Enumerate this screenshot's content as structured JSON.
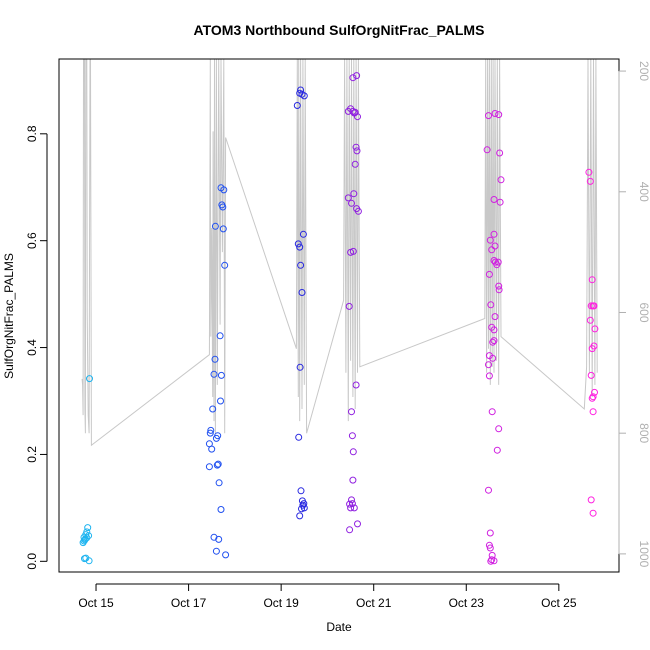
{
  "chart_data": {
    "type": "scatter",
    "title": "ATOM3 Northbound SulfOrgNitFrac_PALMS",
    "xlabel": "Date",
    "ylabel": "SulfOrgNitFrac_PALMS",
    "x_unit": "day of October",
    "xlim": [
      14.2,
      26.3
    ],
    "ylim": [
      -0.02,
      0.94
    ],
    "x_ticks": [
      15,
      17,
      19,
      21,
      23,
      25
    ],
    "x_tick_labels": [
      "Oct 15",
      "Oct 17",
      "Oct 19",
      "Oct 21",
      "Oct 23",
      "Oct 25"
    ],
    "y_ticks": [
      0.0,
      0.2,
      0.4,
      0.6,
      0.8
    ],
    "y_tick_labels": [
      "0.0",
      "0.2",
      "0.4",
      "0.6",
      "0.8"
    ],
    "right_axis": {
      "reversed": true,
      "range": [
        1030,
        180
      ],
      "ticks": [
        200,
        400,
        600,
        800,
        1000
      ],
      "tick_labels": [
        "200",
        "400",
        "600",
        "800",
        "1000"
      ],
      "line_color": "#c8c8c8"
    },
    "grid": false,
    "point_colors": [
      "#1eb4f0",
      "#2050f0",
      "#2828e0",
      "#9020e0",
      "#d020e0",
      "#ff20e0"
    ],
    "points": [
      {
        "x": 14.72,
        "y": 0.035,
        "c": 0
      },
      {
        "x": 14.74,
        "y": 0.045,
        "c": 0
      },
      {
        "x": 14.76,
        "y": 0.04,
        "c": 0
      },
      {
        "x": 14.78,
        "y": 0.05,
        "c": 0
      },
      {
        "x": 14.8,
        "y": 0.055,
        "c": 0
      },
      {
        "x": 14.82,
        "y": 0.063,
        "c": 0
      },
      {
        "x": 14.84,
        "y": 0.048,
        "c": 0
      },
      {
        "x": 14.75,
        "y": 0.005,
        "c": 0
      },
      {
        "x": 14.78,
        "y": 0.006,
        "c": 0
      },
      {
        "x": 14.85,
        "y": 0.001,
        "c": 0
      },
      {
        "x": 14.86,
        "y": 0.342,
        "c": 0
      },
      {
        "x": 14.74,
        "y": 0.038,
        "c": 0
      },
      {
        "x": 14.77,
        "y": 0.042,
        "c": 0
      },
      {
        "x": 14.8,
        "y": 0.044,
        "c": 0
      },
      {
        "x": 17.45,
        "y": 0.22,
        "c": 1
      },
      {
        "x": 17.47,
        "y": 0.24,
        "c": 1
      },
      {
        "x": 17.48,
        "y": 0.245,
        "c": 1
      },
      {
        "x": 17.5,
        "y": 0.21,
        "c": 1
      },
      {
        "x": 17.52,
        "y": 0.285,
        "c": 1
      },
      {
        "x": 17.55,
        "y": 0.35,
        "c": 1
      },
      {
        "x": 17.57,
        "y": 0.378,
        "c": 1
      },
      {
        "x": 17.6,
        "y": 0.23,
        "c": 1
      },
      {
        "x": 17.62,
        "y": 0.18,
        "c": 1
      },
      {
        "x": 17.63,
        "y": 0.235,
        "c": 1
      },
      {
        "x": 17.64,
        "y": 0.182,
        "c": 1
      },
      {
        "x": 17.58,
        "y": 0.627,
        "c": 1
      },
      {
        "x": 17.7,
        "y": 0.699,
        "c": 1
      },
      {
        "x": 17.72,
        "y": 0.667,
        "c": 1
      },
      {
        "x": 17.74,
        "y": 0.663,
        "c": 1
      },
      {
        "x": 17.75,
        "y": 0.622,
        "c": 1
      },
      {
        "x": 17.76,
        "y": 0.695,
        "c": 1
      },
      {
        "x": 17.78,
        "y": 0.554,
        "c": 1
      },
      {
        "x": 17.68,
        "y": 0.422,
        "c": 1
      },
      {
        "x": 17.71,
        "y": 0.348,
        "c": 1
      },
      {
        "x": 17.69,
        "y": 0.3,
        "c": 1
      },
      {
        "x": 17.66,
        "y": 0.147,
        "c": 1
      },
      {
        "x": 17.7,
        "y": 0.097,
        "c": 1
      },
      {
        "x": 17.55,
        "y": 0.045,
        "c": 1
      },
      {
        "x": 17.65,
        "y": 0.041,
        "c": 1
      },
      {
        "x": 17.6,
        "y": 0.019,
        "c": 1
      },
      {
        "x": 17.8,
        "y": 0.012,
        "c": 1
      },
      {
        "x": 17.45,
        "y": 0.177,
        "c": 1
      },
      {
        "x": 19.35,
        "y": 0.853,
        "c": 2
      },
      {
        "x": 19.4,
        "y": 0.876,
        "c": 2
      },
      {
        "x": 19.42,
        "y": 0.882,
        "c": 2
      },
      {
        "x": 19.45,
        "y": 0.874,
        "c": 2
      },
      {
        "x": 19.5,
        "y": 0.871,
        "c": 2
      },
      {
        "x": 19.37,
        "y": 0.594,
        "c": 2
      },
      {
        "x": 19.4,
        "y": 0.588,
        "c": 2
      },
      {
        "x": 19.48,
        "y": 0.612,
        "c": 2
      },
      {
        "x": 19.42,
        "y": 0.554,
        "c": 2
      },
      {
        "x": 19.45,
        "y": 0.503,
        "c": 2
      },
      {
        "x": 19.41,
        "y": 0.363,
        "c": 2
      },
      {
        "x": 19.38,
        "y": 0.232,
        "c": 2
      },
      {
        "x": 19.43,
        "y": 0.132,
        "c": 2
      },
      {
        "x": 19.46,
        "y": 0.113,
        "c": 2
      },
      {
        "x": 19.47,
        "y": 0.105,
        "c": 2
      },
      {
        "x": 19.5,
        "y": 0.1,
        "c": 2
      },
      {
        "x": 19.44,
        "y": 0.098,
        "c": 2
      },
      {
        "x": 19.49,
        "y": 0.108,
        "c": 2
      },
      {
        "x": 19.4,
        "y": 0.085,
        "c": 2
      },
      {
        "x": 20.45,
        "y": 0.842,
        "c": 3
      },
      {
        "x": 20.5,
        "y": 0.847,
        "c": 3
      },
      {
        "x": 20.55,
        "y": 0.842,
        "c": 3
      },
      {
        "x": 20.58,
        "y": 0.839,
        "c": 3
      },
      {
        "x": 20.6,
        "y": 0.84,
        "c": 3
      },
      {
        "x": 20.65,
        "y": 0.832,
        "c": 3
      },
      {
        "x": 20.55,
        "y": 0.905,
        "c": 3
      },
      {
        "x": 20.63,
        "y": 0.909,
        "c": 3
      },
      {
        "x": 20.62,
        "y": 0.775,
        "c": 3
      },
      {
        "x": 20.64,
        "y": 0.768,
        "c": 3
      },
      {
        "x": 20.6,
        "y": 0.743,
        "c": 3
      },
      {
        "x": 20.45,
        "y": 0.68,
        "c": 3
      },
      {
        "x": 20.52,
        "y": 0.67,
        "c": 3
      },
      {
        "x": 20.57,
        "y": 0.688,
        "c": 3
      },
      {
        "x": 20.63,
        "y": 0.66,
        "c": 3
      },
      {
        "x": 20.67,
        "y": 0.655,
        "c": 3
      },
      {
        "x": 20.5,
        "y": 0.578,
        "c": 3
      },
      {
        "x": 20.56,
        "y": 0.58,
        "c": 3
      },
      {
        "x": 20.47,
        "y": 0.477,
        "c": 3
      },
      {
        "x": 20.62,
        "y": 0.33,
        "c": 3
      },
      {
        "x": 20.52,
        "y": 0.28,
        "c": 3
      },
      {
        "x": 20.54,
        "y": 0.235,
        "c": 3
      },
      {
        "x": 20.56,
        "y": 0.205,
        "c": 3
      },
      {
        "x": 20.55,
        "y": 0.152,
        "c": 3
      },
      {
        "x": 20.48,
        "y": 0.107,
        "c": 3
      },
      {
        "x": 20.5,
        "y": 0.1,
        "c": 3
      },
      {
        "x": 20.52,
        "y": 0.115,
        "c": 3
      },
      {
        "x": 20.54,
        "y": 0.108,
        "c": 3
      },
      {
        "x": 20.58,
        "y": 0.1,
        "c": 3
      },
      {
        "x": 20.48,
        "y": 0.059,
        "c": 3
      },
      {
        "x": 20.65,
        "y": 0.07,
        "c": 3
      },
      {
        "x": 23.45,
        "y": 0.77,
        "c": 4
      },
      {
        "x": 23.48,
        "y": 0.834,
        "c": 4
      },
      {
        "x": 23.62,
        "y": 0.838,
        "c": 4
      },
      {
        "x": 23.7,
        "y": 0.836,
        "c": 4
      },
      {
        "x": 23.72,
        "y": 0.764,
        "c": 4
      },
      {
        "x": 23.75,
        "y": 0.714,
        "c": 4
      },
      {
        "x": 23.6,
        "y": 0.677,
        "c": 4
      },
      {
        "x": 23.73,
        "y": 0.672,
        "c": 4
      },
      {
        "x": 23.6,
        "y": 0.612,
        "c": 4
      },
      {
        "x": 23.52,
        "y": 0.601,
        "c": 4
      },
      {
        "x": 23.62,
        "y": 0.59,
        "c": 4
      },
      {
        "x": 23.55,
        "y": 0.583,
        "c": 4
      },
      {
        "x": 23.6,
        "y": 0.563,
        "c": 4
      },
      {
        "x": 23.63,
        "y": 0.56,
        "c": 4
      },
      {
        "x": 23.66,
        "y": 0.555,
        "c": 4
      },
      {
        "x": 23.69,
        "y": 0.56,
        "c": 4
      },
      {
        "x": 23.5,
        "y": 0.537,
        "c": 4
      },
      {
        "x": 23.7,
        "y": 0.515,
        "c": 4
      },
      {
        "x": 23.71,
        "y": 0.508,
        "c": 4
      },
      {
        "x": 23.53,
        "y": 0.48,
        "c": 4
      },
      {
        "x": 23.62,
        "y": 0.458,
        "c": 4
      },
      {
        "x": 23.55,
        "y": 0.438,
        "c": 4
      },
      {
        "x": 23.6,
        "y": 0.433,
        "c": 4
      },
      {
        "x": 23.57,
        "y": 0.41,
        "c": 4
      },
      {
        "x": 23.6,
        "y": 0.413,
        "c": 4
      },
      {
        "x": 23.5,
        "y": 0.385,
        "c": 4
      },
      {
        "x": 23.57,
        "y": 0.38,
        "c": 4
      },
      {
        "x": 23.48,
        "y": 0.368,
        "c": 4
      },
      {
        "x": 23.5,
        "y": 0.347,
        "c": 4
      },
      {
        "x": 23.56,
        "y": 0.28,
        "c": 4
      },
      {
        "x": 23.7,
        "y": 0.248,
        "c": 4
      },
      {
        "x": 23.67,
        "y": 0.208,
        "c": 4
      },
      {
        "x": 23.48,
        "y": 0.133,
        "c": 4
      },
      {
        "x": 23.52,
        "y": 0.053,
        "c": 4
      },
      {
        "x": 23.5,
        "y": 0.03,
        "c": 4
      },
      {
        "x": 23.52,
        "y": 0.025,
        "c": 4
      },
      {
        "x": 23.56,
        "y": 0.011,
        "c": 4
      },
      {
        "x": 23.55,
        "y": 0.003,
        "c": 4
      },
      {
        "x": 23.6,
        "y": 0.001,
        "c": 4
      },
      {
        "x": 23.53,
        "y": 0.0,
        "c": 4
      },
      {
        "x": 25.65,
        "y": 0.728,
        "c": 5
      },
      {
        "x": 25.68,
        "y": 0.711,
        "c": 5
      },
      {
        "x": 25.72,
        "y": 0.527,
        "c": 5
      },
      {
        "x": 25.7,
        "y": 0.478,
        "c": 5
      },
      {
        "x": 25.74,
        "y": 0.478,
        "c": 5
      },
      {
        "x": 25.76,
        "y": 0.478,
        "c": 5
      },
      {
        "x": 25.68,
        "y": 0.451,
        "c": 5
      },
      {
        "x": 25.78,
        "y": 0.435,
        "c": 5
      },
      {
        "x": 25.72,
        "y": 0.398,
        "c": 5
      },
      {
        "x": 25.76,
        "y": 0.403,
        "c": 5
      },
      {
        "x": 25.7,
        "y": 0.348,
        "c": 5
      },
      {
        "x": 25.72,
        "y": 0.305,
        "c": 5
      },
      {
        "x": 25.74,
        "y": 0.308,
        "c": 5
      },
      {
        "x": 25.77,
        "y": 0.316,
        "c": 5
      },
      {
        "x": 25.74,
        "y": 0.28,
        "c": 5
      },
      {
        "x": 25.7,
        "y": 0.115,
        "c": 5
      },
      {
        "x": 25.74,
        "y": 0.09,
        "c": 5
      }
    ],
    "altitude_line": [
      [
        14.7,
        710
      ],
      [
        14.71,
        720
      ],
      [
        14.72,
        770
      ],
      [
        14.73,
        150
      ],
      [
        14.74,
        160
      ],
      [
        14.75,
        150
      ],
      [
        14.76,
        760
      ],
      [
        14.77,
        800
      ],
      [
        14.78,
        170
      ],
      [
        14.8,
        150
      ],
      [
        14.81,
        600
      ],
      [
        14.83,
        770
      ],
      [
        14.85,
        800
      ],
      [
        14.87,
        180
      ],
      [
        14.88,
        150
      ],
      [
        14.9,
        820
      ],
      [
        17.45,
        670
      ],
      [
        17.47,
        180
      ],
      [
        17.48,
        640
      ],
      [
        17.5,
        460
      ],
      [
        17.52,
        740
      ],
      [
        17.53,
        300
      ],
      [
        17.55,
        780
      ],
      [
        17.56,
        170
      ],
      [
        17.58,
        800
      ],
      [
        17.6,
        160
      ],
      [
        17.62,
        720
      ],
      [
        17.65,
        150
      ],
      [
        17.68,
        620
      ],
      [
        17.7,
        180
      ],
      [
        17.73,
        500
      ],
      [
        17.76,
        160
      ],
      [
        17.78,
        800
      ],
      [
        17.8,
        310
      ],
      [
        19.33,
        660
      ],
      [
        19.35,
        160
      ],
      [
        19.37,
        740
      ],
      [
        19.38,
        170
      ],
      [
        19.4,
        780
      ],
      [
        19.42,
        150
      ],
      [
        19.45,
        760
      ],
      [
        19.47,
        170
      ],
      [
        19.5,
        720
      ],
      [
        19.52,
        160
      ],
      [
        19.55,
        800
      ],
      [
        20.35,
        580
      ],
      [
        20.37,
        150
      ],
      [
        20.4,
        700
      ],
      [
        20.42,
        170
      ],
      [
        20.45,
        780
      ],
      [
        20.47,
        150
      ],
      [
        20.5,
        680
      ],
      [
        20.52,
        170
      ],
      [
        20.55,
        740
      ],
      [
        20.57,
        160
      ],
      [
        20.6,
        760
      ],
      [
        20.62,
        150
      ],
      [
        20.65,
        700
      ],
      [
        20.67,
        170
      ],
      [
        20.7,
        690
      ],
      [
        23.4,
        610
      ],
      [
        23.42,
        170
      ],
      [
        23.44,
        700
      ],
      [
        23.46,
        150
      ],
      [
        23.48,
        660
      ],
      [
        23.5,
        160
      ],
      [
        23.52,
        720
      ],
      [
        23.54,
        170
      ],
      [
        23.56,
        690
      ],
      [
        23.58,
        150
      ],
      [
        23.6,
        700
      ],
      [
        23.62,
        180
      ],
      [
        23.65,
        680
      ],
      [
        23.67,
        150
      ],
      [
        23.7,
        720
      ],
      [
        23.72,
        170
      ],
      [
        23.75,
        640
      ],
      [
        25.55,
        760
      ],
      [
        25.6,
        690
      ],
      [
        25.63,
        150
      ],
      [
        25.66,
        700
      ],
      [
        25.69,
        160
      ],
      [
        25.72,
        740
      ],
      [
        25.75,
        150
      ],
      [
        25.78,
        720
      ],
      [
        25.8,
        170
      ],
      [
        25.83,
        700
      ]
    ]
  }
}
